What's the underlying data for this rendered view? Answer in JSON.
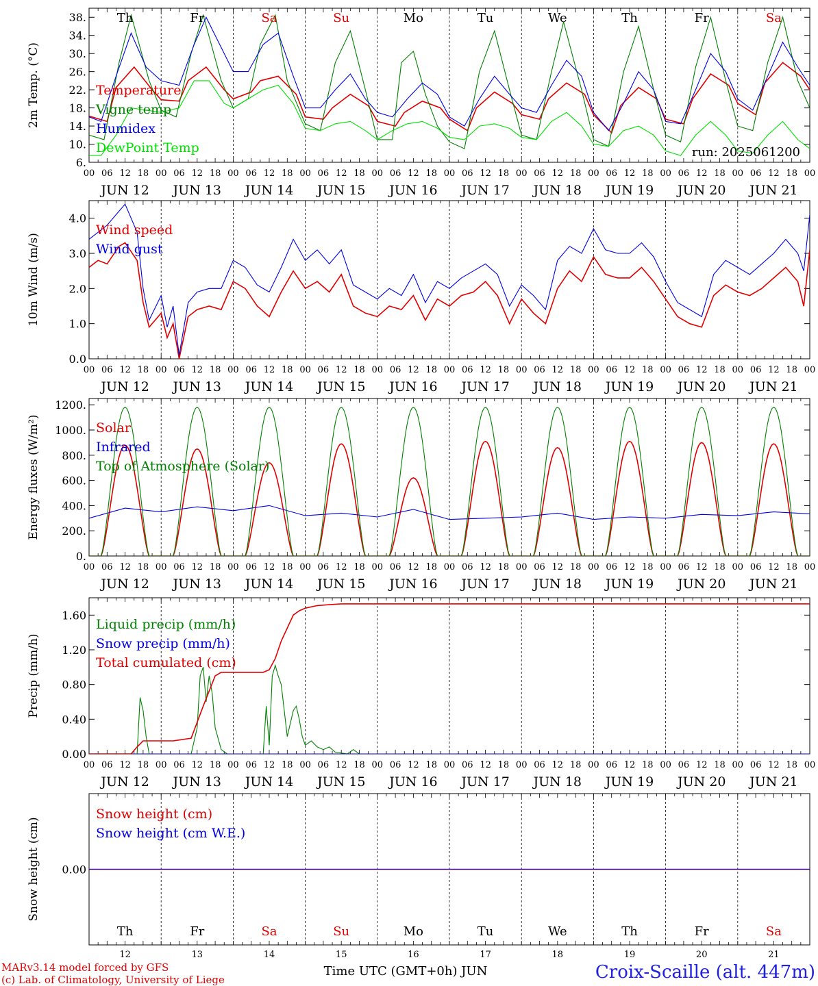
{
  "colors": {
    "red": "#e00000",
    "green": "#008000",
    "blue": "#0000e0",
    "lime": "#00e000",
    "axis": "#000000",
    "station": "#2020e0"
  },
  "days": {
    "names": [
      "Th",
      "Fr",
      "Sa",
      "Su",
      "Mo",
      "Tu",
      "We",
      "Th",
      "Fr",
      "Sa"
    ],
    "weekend_flags": [
      false,
      false,
      true,
      true,
      false,
      false,
      false,
      false,
      false,
      true
    ],
    "dates": [
      "JUN 12",
      "JUN 13",
      "JUN 14",
      "JUN 15",
      "JUN 16",
      "JUN 17",
      "JUN 18",
      "JUN 19",
      "JUN 20",
      "JUN 21"
    ],
    "date_numbers": [
      "12",
      "13",
      "14",
      "15",
      "16",
      "17",
      "18",
      "19",
      "20",
      "21"
    ],
    "hour_labels": [
      "00",
      "06",
      "12",
      "18"
    ],
    "final_hour_label": "00"
  },
  "footer": {
    "model_line": "MARv3.14 model forced by GFS",
    "credit_line": "(c) Lab. of Climatology, University of Liege",
    "time_axis_label": "Time UTC (GMT+0h) JUN",
    "station": "Croix-Scaille (alt. 447m)"
  },
  "chart_data": [
    {
      "type": "line",
      "ylabel": "2m Temp. (°C)",
      "annotation": "run: 2025061200",
      "y_ticks": [
        "6.",
        "10.",
        "14.",
        "18.",
        "22.",
        "26.",
        "30.",
        "34.",
        "38."
      ],
      "ylim": [
        6,
        40
      ],
      "x_unit": "hours since JUN 12 00 UTC",
      "series": [
        {
          "name": "Temperature",
          "color": "red",
          "x": [
            0,
            6,
            9,
            15,
            21,
            24,
            30,
            33,
            39,
            45,
            48,
            54,
            57,
            63,
            69,
            72,
            78,
            81,
            87,
            93,
            96,
            102,
            105,
            111,
            117,
            120,
            126,
            129,
            135,
            141,
            144,
            150,
            153,
            159,
            165,
            168,
            174,
            177,
            183,
            189,
            192,
            198,
            201,
            207,
            213,
            216,
            222,
            225,
            231,
            237,
            240
          ],
          "y": [
            16.2,
            15.0,
            22.5,
            27.0,
            22.0,
            19.8,
            19.5,
            24.0,
            27.0,
            22.0,
            20.0,
            21.5,
            24.0,
            25.0,
            21.0,
            16.0,
            15.5,
            18.0,
            21.0,
            18.5,
            15.0,
            14.0,
            17.0,
            19.5,
            18.0,
            15.5,
            13.0,
            18.0,
            21.5,
            19.0,
            16.5,
            15.5,
            20.0,
            23.5,
            21.0,
            16.5,
            12.5,
            18.5,
            22.5,
            20.0,
            15.5,
            14.5,
            20.0,
            25.5,
            23.0,
            19.0,
            16.5,
            23.5,
            28.0,
            25.0,
            22.0
          ]
        },
        {
          "name": "Vigne temp",
          "color": "green",
          "x": [
            0,
            5,
            10,
            14,
            20,
            24,
            29,
            34,
            38,
            44,
            48,
            53,
            57,
            62,
            66,
            72,
            77,
            82,
            87,
            92,
            96,
            101,
            104,
            108,
            112,
            116,
            120,
            125,
            130,
            135,
            140,
            144,
            149,
            154,
            158,
            164,
            168,
            173,
            178,
            183,
            188,
            192,
            197,
            202,
            207,
            212,
            216,
            221,
            226,
            231,
            236,
            240
          ],
          "y": [
            12.0,
            11.0,
            28.0,
            38.5,
            24.0,
            17.5,
            16.0,
            30.0,
            38.5,
            24.0,
            18.0,
            20.0,
            32.0,
            38.5,
            24.0,
            14.5,
            13.0,
            28.0,
            35.0,
            22.0,
            11.0,
            11.0,
            28.0,
            30.5,
            21.0,
            14.0,
            10.5,
            9.0,
            26.0,
            35.0,
            22.0,
            12.0,
            11.0,
            26.0,
            37.0,
            22.0,
            11.0,
            9.5,
            26.0,
            36.0,
            22.0,
            12.0,
            10.5,
            27.0,
            38.0,
            24.0,
            14.0,
            13.0,
            28.0,
            38.0,
            24.0,
            18.0
          ]
        },
        {
          "name": "Humidex",
          "color": "blue",
          "x": [
            0,
            4,
            9,
            14,
            19,
            24,
            30,
            35,
            39,
            45,
            48,
            53,
            58,
            63,
            68,
            72,
            77,
            82,
            87,
            92,
            96,
            101,
            106,
            111,
            116,
            120,
            125,
            130,
            135,
            140,
            144,
            149,
            154,
            159,
            164,
            168,
            173,
            178,
            183,
            188,
            192,
            197,
            202,
            207,
            212,
            216,
            221,
            226,
            231,
            236,
            240
          ],
          "y": [
            16.0,
            15.0,
            25.0,
            34.5,
            27.0,
            24.0,
            23.0,
            32.0,
            38.0,
            30.0,
            26.0,
            26.0,
            32.0,
            34.5,
            25.0,
            18.0,
            18.0,
            22.0,
            25.5,
            20.0,
            17.0,
            16.0,
            20.0,
            23.5,
            21.0,
            16.0,
            14.0,
            20.0,
            25.0,
            21.0,
            18.0,
            17.0,
            23.0,
            28.5,
            25.0,
            17.0,
            13.0,
            19.0,
            26.0,
            22.0,
            15.0,
            14.5,
            22.0,
            30.0,
            26.0,
            20.0,
            17.5,
            25.0,
            32.5,
            27.0,
            23.0
          ]
        },
        {
          "name": "DewPoint Temp",
          "color": "lime",
          "x": [
            0,
            4,
            9,
            14,
            19,
            24,
            30,
            35,
            40,
            45,
            48,
            53,
            58,
            63,
            68,
            72,
            77,
            82,
            87,
            92,
            96,
            101,
            106,
            111,
            116,
            120,
            125,
            130,
            135,
            140,
            144,
            149,
            154,
            159,
            164,
            168,
            173,
            178,
            183,
            188,
            192,
            197,
            202,
            207,
            212,
            216,
            221,
            226,
            231,
            236,
            240
          ],
          "y": [
            7.5,
            7.5,
            12.0,
            18.0,
            17.5,
            17.0,
            18.0,
            24.0,
            24.0,
            19.0,
            18.0,
            20.0,
            22.0,
            23.0,
            19.0,
            13.5,
            13.0,
            14.5,
            15.0,
            13.0,
            11.0,
            13.0,
            14.5,
            15.0,
            13.5,
            11.5,
            11.0,
            14.0,
            14.5,
            13.5,
            11.5,
            11.0,
            15.0,
            17.0,
            14.0,
            10.0,
            9.5,
            13.0,
            14.0,
            12.0,
            8.5,
            7.5,
            12.0,
            15.0,
            12.0,
            8.5,
            8.0,
            12.0,
            15.0,
            11.0,
            9.0
          ]
        }
      ]
    },
    {
      "type": "line",
      "ylabel": "10m Wind (m/s)",
      "y_ticks": [
        "0.0",
        "1.0",
        "2.0",
        "3.0",
        "4.0"
      ],
      "ylim": [
        0,
        4.5
      ],
      "x_unit": "hours since JUN 12 00 UTC",
      "series": [
        {
          "name": "Wind speed",
          "color": "red",
          "x": [
            0,
            3,
            6,
            10,
            12,
            16,
            18,
            20,
            24,
            26,
            28,
            30,
            33,
            36,
            40,
            44,
            48,
            52,
            56,
            60,
            64,
            68,
            72,
            76,
            80,
            84,
            88,
            92,
            96,
            100,
            104,
            108,
            112,
            116,
            120,
            124,
            128,
            132,
            136,
            140,
            144,
            148,
            152,
            156,
            160,
            164,
            168,
            172,
            176,
            180,
            184,
            188,
            192,
            196,
            200,
            204,
            208,
            212,
            216,
            220,
            224,
            228,
            232,
            236,
            238,
            240
          ],
          "y": [
            2.6,
            2.8,
            2.7,
            3.2,
            3.3,
            2.8,
            1.6,
            0.9,
            1.3,
            0.6,
            1.0,
            0.0,
            1.2,
            1.4,
            1.5,
            1.4,
            2.2,
            2.0,
            1.5,
            1.2,
            1.9,
            2.5,
            2.0,
            2.2,
            1.9,
            2.4,
            1.5,
            1.3,
            1.2,
            1.5,
            1.4,
            1.8,
            1.1,
            1.7,
            1.5,
            1.8,
            1.9,
            2.2,
            1.8,
            1.0,
            1.7,
            1.3,
            1.0,
            2.0,
            2.5,
            2.2,
            2.9,
            2.4,
            2.3,
            2.3,
            2.6,
            2.2,
            1.7,
            1.2,
            1.0,
            0.9,
            1.8,
            2.1,
            1.9,
            1.8,
            2.0,
            2.3,
            2.6,
            2.2,
            1.5,
            3.1
          ]
        },
        {
          "name": "Wind gust",
          "color": "blue",
          "x": [
            0,
            3,
            6,
            10,
            12,
            16,
            18,
            20,
            24,
            26,
            28,
            30,
            33,
            36,
            40,
            44,
            48,
            52,
            56,
            60,
            64,
            68,
            72,
            76,
            80,
            84,
            88,
            92,
            96,
            100,
            104,
            108,
            112,
            116,
            120,
            124,
            128,
            132,
            136,
            140,
            144,
            148,
            152,
            156,
            160,
            164,
            168,
            172,
            176,
            180,
            184,
            188,
            192,
            196,
            200,
            204,
            208,
            212,
            216,
            220,
            224,
            228,
            232,
            236,
            238,
            240
          ],
          "y": [
            3.4,
            3.6,
            3.8,
            4.2,
            4.4,
            3.6,
            2.0,
            1.1,
            1.8,
            0.9,
            1.5,
            0.1,
            1.6,
            1.9,
            2.0,
            2.0,
            2.8,
            2.6,
            2.1,
            1.9,
            2.6,
            3.4,
            2.8,
            3.1,
            2.7,
            3.1,
            2.1,
            1.9,
            1.7,
            2.0,
            1.8,
            2.4,
            1.6,
            2.2,
            2.0,
            2.3,
            2.5,
            2.7,
            2.4,
            1.5,
            2.1,
            1.8,
            1.4,
            2.8,
            3.2,
            3.0,
            3.7,
            3.1,
            3.0,
            3.0,
            3.3,
            2.9,
            2.2,
            1.6,
            1.4,
            1.2,
            2.4,
            2.8,
            2.6,
            2.4,
            2.7,
            3.0,
            3.4,
            3.0,
            2.5,
            4.1
          ]
        }
      ]
    },
    {
      "type": "line",
      "ylabel": "Energy fluxes (W/m²)",
      "y_ticks": [
        "0.",
        "200.",
        "400.",
        "600.",
        "800.",
        "1000.",
        "1200."
      ],
      "ylim": [
        0,
        1250
      ],
      "x_unit": "hours since JUN 12 00 UTC",
      "series": [
        {
          "name": "Solar",
          "color": "red",
          "peaks": [
            880,
            850,
            740,
            890,
            620,
            910,
            860,
            910,
            900,
            890
          ],
          "x": [],
          "y": []
        },
        {
          "name": "Infrared",
          "color": "blue",
          "x": [
            0,
            12,
            24,
            36,
            48,
            60,
            72,
            84,
            96,
            108,
            120,
            132,
            144,
            156,
            168,
            180,
            192,
            204,
            216,
            228,
            240
          ],
          "y": [
            300,
            380,
            350,
            390,
            360,
            400,
            320,
            340,
            310,
            370,
            290,
            300,
            310,
            340,
            290,
            310,
            300,
            330,
            320,
            350,
            335
          ]
        },
        {
          "name": "Top of Atmosphere (Solar)",
          "color": "green",
          "peak": 1180,
          "x": [],
          "y": []
        }
      ]
    },
    {
      "type": "line",
      "ylabel": "Precip (mm/h)",
      "y_ticks": [
        "0.00",
        "0.40",
        "0.80",
        "1.20",
        "1.60"
      ],
      "ylim": [
        0,
        1.8
      ],
      "x_unit": "hours since JUN 12 00 UTC",
      "series": [
        {
          "name": "Liquid precip (mm/h)",
          "color": "green",
          "x": [
            0,
            16,
            17,
            18,
            19,
            20,
            24,
            34,
            36,
            37,
            38,
            39,
            40,
            41,
            42,
            44,
            46,
            58,
            59,
            60,
            61,
            62,
            63,
            64,
            66,
            68,
            69,
            70,
            71,
            72,
            74,
            76,
            78,
            80,
            82,
            86,
            88,
            90,
            240
          ],
          "y": [
            0,
            0,
            0.65,
            0.5,
            0.2,
            0,
            0,
            0,
            0.3,
            0.9,
            1.0,
            0.6,
            0.9,
            0.7,
            0.3,
            0.05,
            0,
            0,
            0.55,
            0.1,
            0.9,
            1.02,
            0.9,
            0.8,
            0.2,
            0.5,
            0.55,
            0.4,
            0.2,
            0.1,
            0.15,
            0.08,
            0.05,
            0.08,
            0.02,
            0,
            0.05,
            0,
            0
          ]
        },
        {
          "name": "Snow precip (mm/h)",
          "color": "blue",
          "x": [
            0,
            240
          ],
          "y": [
            0,
            0
          ]
        },
        {
          "name": "Total cumulated (cm)",
          "color": "red",
          "x": [
            0,
            14,
            16,
            18,
            20,
            28,
            34,
            38,
            42,
            44,
            46,
            58,
            60,
            62,
            64,
            66,
            68,
            70,
            72,
            76,
            80,
            84,
            96,
            240
          ],
          "y": [
            0,
            0,
            0.08,
            0.15,
            0.15,
            0.15,
            0.18,
            0.55,
            0.9,
            0.94,
            0.94,
            0.94,
            0.97,
            1.1,
            1.3,
            1.45,
            1.6,
            1.65,
            1.68,
            1.71,
            1.72,
            1.73,
            1.73,
            1.73
          ]
        }
      ]
    },
    {
      "type": "line",
      "ylabel": "Snow height (cm)",
      "y_ticks": [
        "0.00"
      ],
      "ylim": [
        -1,
        1
      ],
      "x_unit": "hours since JUN 12 00 UTC",
      "series": [
        {
          "name": "Snow height (cm)",
          "color": "red",
          "x": [
            0,
            240
          ],
          "y": [
            0,
            0
          ]
        },
        {
          "name": "Snow height (cm W.E.)",
          "color": "blue",
          "x": [
            0,
            240
          ],
          "y": [
            0,
            0
          ]
        }
      ]
    }
  ]
}
